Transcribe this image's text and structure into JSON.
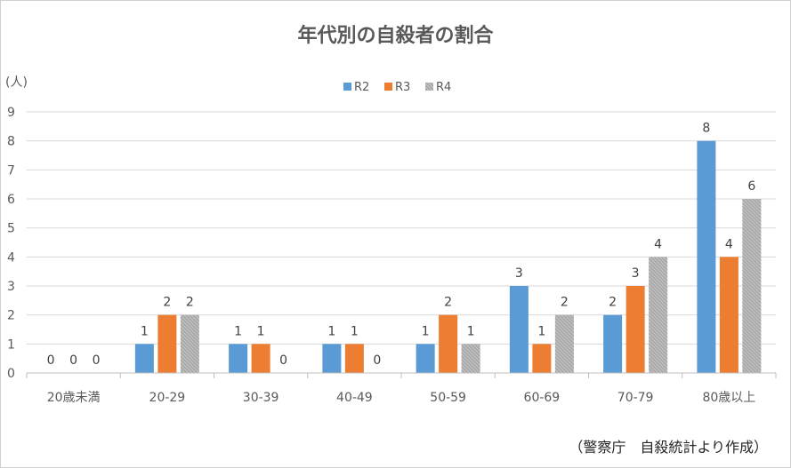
{
  "chart_data": {
    "type": "bar",
    "title": "年代別の自殺者の割合",
    "ylabel": "(人)",
    "xlabel": "",
    "ylim": [
      0,
      9
    ],
    "yticks": [
      0,
      1,
      2,
      3,
      4,
      5,
      6,
      7,
      8,
      9
    ],
    "categories": [
      "20歳未満",
      "20-29",
      "30-39",
      "40-49",
      "50-59",
      "60-69",
      "70-79",
      "80歳以上"
    ],
    "series": [
      {
        "name": "R2",
        "color": "#5B9BD5",
        "values": [
          0,
          1,
          1,
          1,
          1,
          3,
          2,
          8
        ]
      },
      {
        "name": "R3",
        "color": "#ED7D31",
        "values": [
          0,
          2,
          1,
          1,
          2,
          1,
          3,
          4
        ]
      },
      {
        "name": "R4",
        "color": "#A5A5A5",
        "values": [
          0,
          2,
          0,
          0,
          1,
          2,
          4,
          6
        ]
      }
    ],
    "legend_position": "top-center",
    "grid": true,
    "source_note": "（警察庁　自殺統計より作成）"
  }
}
